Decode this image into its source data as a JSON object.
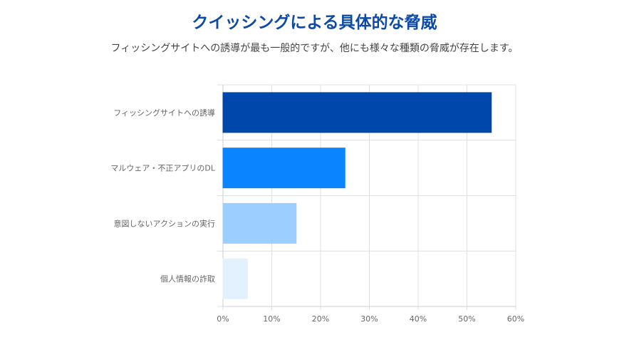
{
  "header": {
    "title": "クイッシングによる具体的な脅威",
    "subtitle": "フィッシングサイトへの誘導が最も一般的ですが、他にも様々な種類の脅威が存在します。"
  },
  "chart_data": {
    "type": "bar",
    "orientation": "horizontal",
    "categories": [
      "フィッシングサイトへの誘導",
      "マルウェア・不正アプリのDL",
      "意図しないアクションの実行",
      "個人情報の詐取"
    ],
    "values": [
      55,
      25,
      15,
      5
    ],
    "colors": [
      "#0047ab",
      "#0a84ff",
      "#9ccfff",
      "#e3f1ff"
    ],
    "xlim": [
      0,
      60
    ],
    "xticks": [
      "0%",
      "10%",
      "20%",
      "30%",
      "40%",
      "50%",
      "60%"
    ],
    "grid": true
  }
}
